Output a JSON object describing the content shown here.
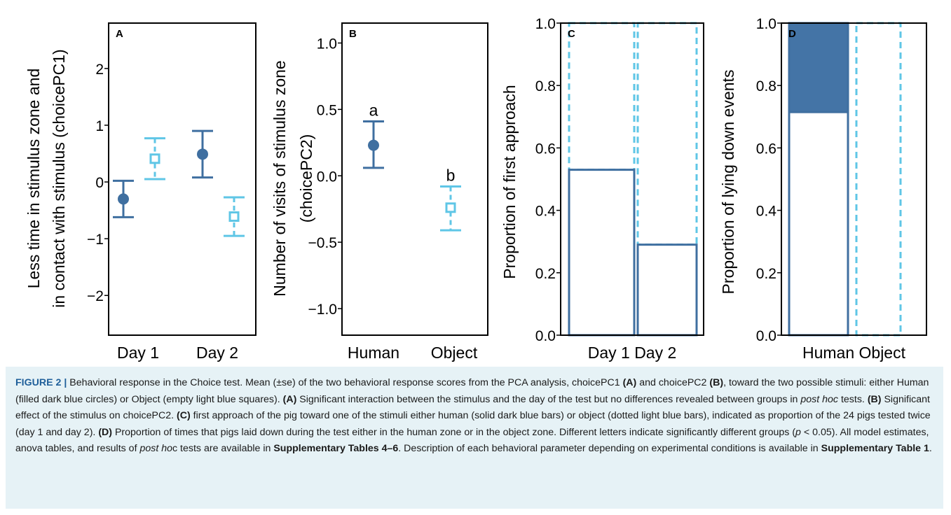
{
  "colors": {
    "human": "#3f6fa0",
    "object": "#5fc6e6",
    "human_fill": "#4474a6",
    "caption_bg": "#e6f2f6",
    "figure_label": "#1f5f9a"
  },
  "chart_data": [
    {
      "panel": "A",
      "type": "scatter",
      "ylabel_lines": [
        "Less time in stimulus zone  and",
        "in contact with stimulus (choicePC1)"
      ],
      "categories": [
        "Day 1",
        "Day 2"
      ],
      "yticks": [
        "2",
        "1",
        "0",
        "−1",
        "−2"
      ],
      "ylim": [
        -2.7,
        2.8
      ],
      "series": [
        {
          "key": "human",
          "marker": "filled-circle",
          "points": [
            {
              "mean": -0.3,
              "lo": -0.62,
              "hi": 0.02
            },
            {
              "mean": 0.49,
              "lo": 0.08,
              "hi": 0.9
            }
          ]
        },
        {
          "key": "object",
          "marker": "open-square",
          "points": [
            {
              "mean": 0.41,
              "lo": 0.05,
              "hi": 0.77
            },
            {
              "mean": -0.61,
              "lo": -0.95,
              "hi": -0.27
            }
          ]
        }
      ]
    },
    {
      "panel": "B",
      "type": "scatter",
      "ylabel_lines": [
        "Number of visits of stimulus zone",
        "(choicePC2)"
      ],
      "categories": [
        "Human",
        "Object"
      ],
      "yticks": [
        "1.0",
        "0.5",
        "0.0",
        "−0.5",
        "−1.0"
      ],
      "ylim": [
        -1.2,
        1.15
      ],
      "series": [
        {
          "key": "human",
          "marker": "filled-circle",
          "points": [
            {
              "mean": 0.23,
              "lo": 0.06,
              "hi": 0.41
            }
          ]
        },
        {
          "key": "object",
          "marker": "open-square",
          "points": [
            {
              "mean": -0.24,
              "lo": -0.41,
              "hi": -0.08
            }
          ]
        }
      ],
      "annotations": [
        "a",
        "b"
      ]
    },
    {
      "panel": "C",
      "type": "bar",
      "ylabel": "Proportion of first approach",
      "categories": [
        "Day 1",
        "Day 2"
      ],
      "category_label": "Day 1 Day 2",
      "yticks": [
        "1.0",
        "0.8",
        "0.6",
        "0.4",
        "0.2",
        "0.0"
      ],
      "ylim": [
        0,
        1
      ],
      "stacked": {
        "human": [
          0.53,
          0.29
        ],
        "object": [
          0.47,
          0.71
        ]
      }
    },
    {
      "panel": "D",
      "type": "bar",
      "ylabel": "Proportion of lying down events",
      "categories": [
        "Human",
        "Object"
      ],
      "category_label": "Human Object",
      "yticks": [
        "1.0",
        "0.8",
        "0.6",
        "0.4",
        "0.2",
        "0.0"
      ],
      "ylim": [
        0,
        1
      ],
      "human": {
        "solid_from": 0.715,
        "total": 1.0
      },
      "object": {
        "total": 1.0
      }
    }
  ],
  "caption": {
    "label": "FIGURE 2 |",
    "p1": " Behavioral response in the Choice test. Mean (±se) of the two behavioral response scores from the PCA analysis, choicePC1 ",
    "A1": "(A)",
    "p2": " and choicePC2 ",
    "B1": "(B)",
    "p3": ", toward the two possible stimuli: either Human (filled dark blue circles) or Object (empty light blue squares). ",
    "A2": "(A)",
    "p4": " Significant interaction between the stimulus and the day of the test but no differences revealed between groups in ",
    "posthoc1": "post hoc",
    "p5": " tests. ",
    "B2": "(B)",
    "p6": " Significant effect of the stimulus on choicePC2. ",
    "C1": "(C)",
    "p7": " first approach of the pig toward one of the stimuli either human (solid dark blue bars) or object (dotted light blue bars), indicated as proportion of the 24 pigs tested twice (day 1 and day 2). ",
    "D1": "(D)",
    "p8": " Proportion of times that pigs laid down during the test either in the human zone or in the object zone. Different letters indicate significantly different groups (",
    "pvar": "p",
    "p9": " < 0.05). All model estimates, anova tables, and results of ",
    "posthoc2": "post ho",
    "p10": "c tests are available in ",
    "supp1": "Supplementary Tables 4–6",
    "p11": ". Description of each behavioral parameter depending on experimental conditions is available in ",
    "supp2": "Supplementary Table 1",
    "p12": "."
  }
}
